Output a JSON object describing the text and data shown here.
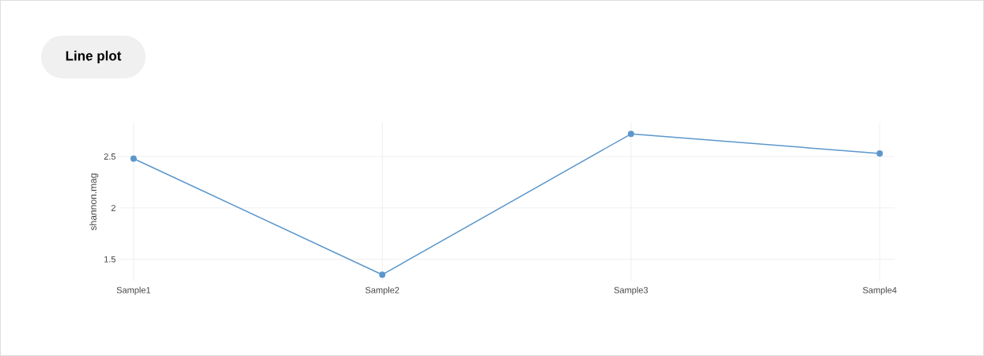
{
  "chart_data": {
    "type": "line",
    "title": "Line plot",
    "ylabel": "shannon.mag",
    "categories": [
      "Sample1",
      "Sample2",
      "Sample3",
      "Sample4"
    ],
    "series": [
      {
        "color": "#5b97cc",
        "values": [
          2.48,
          1.35,
          2.72,
          2.53
        ]
      }
    ],
    "ylim": [
      1.29,
      2.83
    ],
    "yticks": [
      1.5,
      2,
      2.5
    ],
    "grid": true,
    "marker": "circle",
    "line_style": "solid"
  }
}
